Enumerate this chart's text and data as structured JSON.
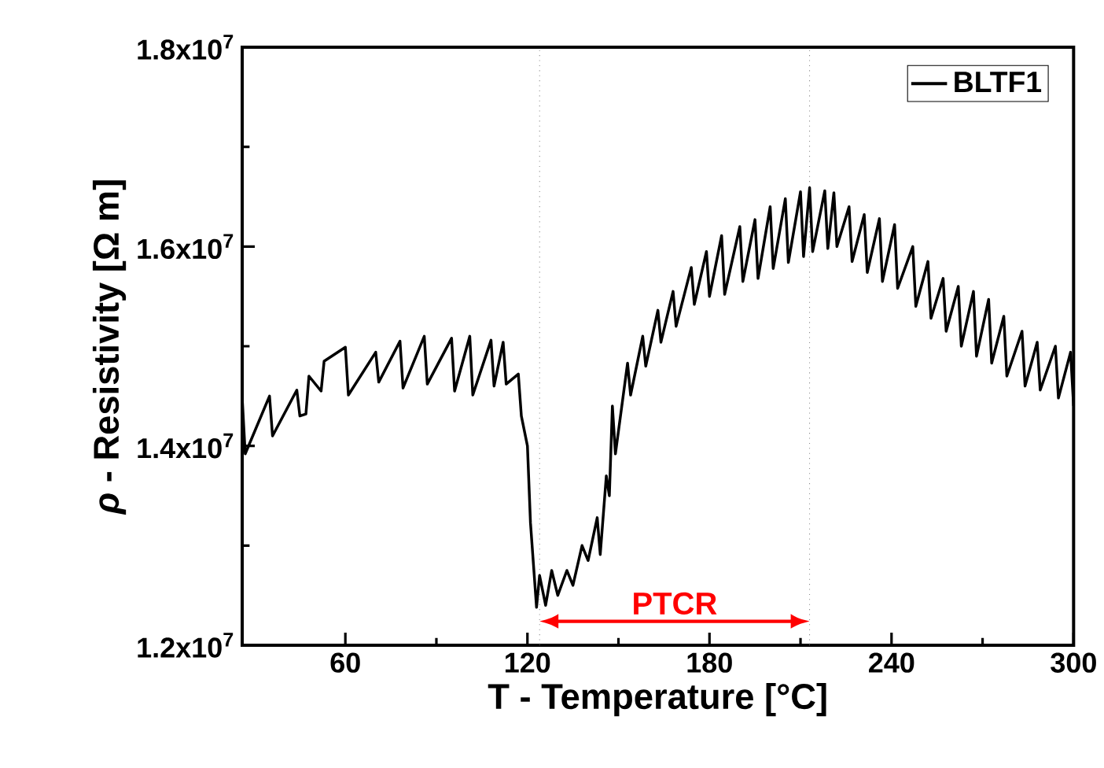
{
  "chart_data": {
    "type": "line",
    "xlabel": "T - Temperature [°C]",
    "ylabel": "*ρ* - Resistivity [Ω m]",
    "x": [
      26,
      27,
      35,
      36,
      44,
      45,
      47,
      48,
      52,
      53,
      60,
      61,
      70,
      71,
      78,
      79,
      86,
      87,
      95,
      96,
      101,
      102,
      108,
      109,
      112,
      113,
      117,
      118,
      120,
      121,
      123,
      124,
      126,
      128,
      130,
      133,
      135,
      138,
      140,
      143,
      144,
      146,
      147,
      148,
      149,
      153,
      154,
      158,
      159,
      163,
      164,
      168,
      169,
      174,
      175,
      179,
      180,
      184,
      185,
      190,
      191,
      195,
      196,
      200,
      201,
      205,
      206,
      210,
      211,
      213,
      214,
      218,
      219,
      221,
      222,
      226,
      227,
      231,
      232,
      236,
      237,
      241,
      242,
      247,
      248,
      252,
      253,
      257,
      258,
      262,
      263,
      267,
      268,
      272,
      273,
      277,
      278,
      283,
      284,
      288,
      289,
      294,
      295,
      299,
      300
    ],
    "series": [
      {
        "name": "BLTF1",
        "color": "#000000",
        "values": [
          14480000,
          13920000,
          14500000,
          14100000,
          14560000,
          14300000,
          14320000,
          14700000,
          14550000,
          14850000,
          14990000,
          14510000,
          14940000,
          14640000,
          15050000,
          14580000,
          15100000,
          14620000,
          15080000,
          14550000,
          15100000,
          14510000,
          15060000,
          14600000,
          15040000,
          14620000,
          14720000,
          14300000,
          14000000,
          13230000,
          12380000,
          12700000,
          12400000,
          12750000,
          12500000,
          12750000,
          12600000,
          13000000,
          12850000,
          13280000,
          12910000,
          13700000,
          13500000,
          14400000,
          13920000,
          14830000,
          14510000,
          15100000,
          14800000,
          15360000,
          15040000,
          15550000,
          15200000,
          15790000,
          15420000,
          15950000,
          15500000,
          16110000,
          15520000,
          16200000,
          15650000,
          16270000,
          15680000,
          16400000,
          15780000,
          16480000,
          15840000,
          16550000,
          15900000,
          16590000,
          15950000,
          16560000,
          15980000,
          16540000,
          16000000,
          16400000,
          15850000,
          16320000,
          15740000,
          16280000,
          15650000,
          16220000,
          15580000,
          16000000,
          15400000,
          15850000,
          15280000,
          15680000,
          15150000,
          15600000,
          15000000,
          15550000,
          14900000,
          15470000,
          14830000,
          15300000,
          14700000,
          15150000,
          14600000,
          15040000,
          14560000,
          15000000,
          14480000,
          14940000,
          14400000
        ]
      }
    ],
    "xlim": [
      26,
      300
    ],
    "ylim": [
      12000000,
      18000000
    ],
    "xticks": [
      60,
      120,
      180,
      240,
      300
    ],
    "yticks": [
      {
        "value": 12000000,
        "label": "1.2x10$^{7}$"
      },
      {
        "value": 14000000,
        "label": "1.4x10$^{7}$"
      },
      {
        "value": 16000000,
        "label": "1.6x10$^{7}$"
      },
      {
        "value": 18000000,
        "label": "1.8x10$^{7}$"
      }
    ],
    "legend": "top right",
    "ref_lines": [
      {
        "axis": "x",
        "value": 124,
        "color": "#808080",
        "line_style": "dotted"
      },
      {
        "axis": "x",
        "value": 213,
        "color": "#808080",
        "line_style": "dotted"
      }
    ],
    "annotations": [
      "PTCR"
    ]
  }
}
